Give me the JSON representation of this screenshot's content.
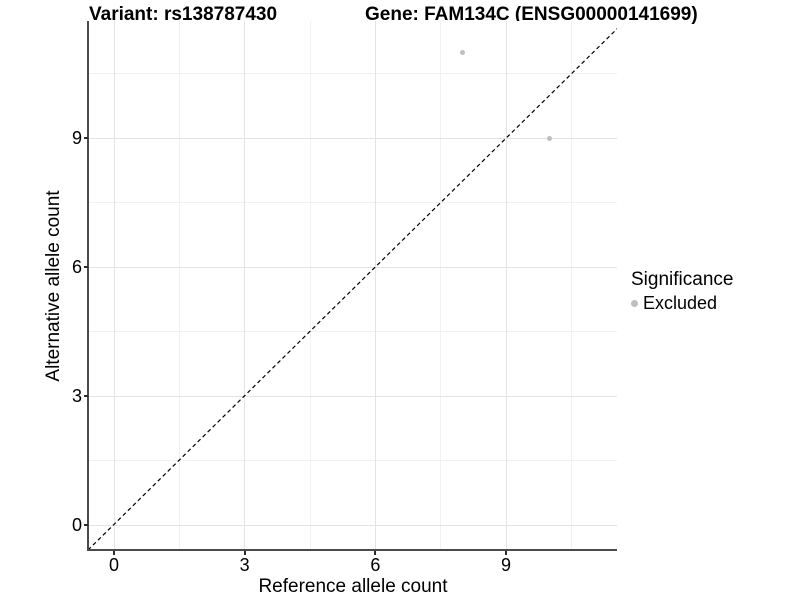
{
  "chart_data": {
    "type": "scatter",
    "title_left": "Variant: rs138787430",
    "title_right": "Gene: FAM134C (ENSG00000141699)",
    "xlabel": "Reference allele count",
    "ylabel": "Alternative allele count",
    "xlim": [
      -0.58,
      11.72
    ],
    "ylim": [
      -0.58,
      11.72
    ],
    "x_ticks": [
      0,
      3,
      6,
      9
    ],
    "y_ticks": [
      0,
      3,
      6,
      9
    ],
    "x_minor_ticks": [
      1.5,
      4.5,
      7.5,
      10.5
    ],
    "y_minor_ticks": [
      1.5,
      4.5,
      7.5,
      10.5
    ],
    "grid": true,
    "legend_position": "right",
    "legend": {
      "title": "Significance",
      "entries": [
        {
          "label": "Excluded",
          "color": "#bebebe"
        }
      ]
    },
    "series": [
      {
        "name": "Excluded",
        "color": "#bebebe",
        "points": [
          {
            "x": 8,
            "y": 11
          },
          {
            "x": 10,
            "y": 9
          }
        ]
      }
    ],
    "reference_line": {
      "type": "identity",
      "style": "dashed",
      "color": "#000000"
    }
  },
  "colors": {
    "grid_major": "#e3e3e3",
    "grid_minor": "#f1f1f1",
    "axis_line": "#4a4a4a",
    "point_gray": "#bebebe"
  }
}
